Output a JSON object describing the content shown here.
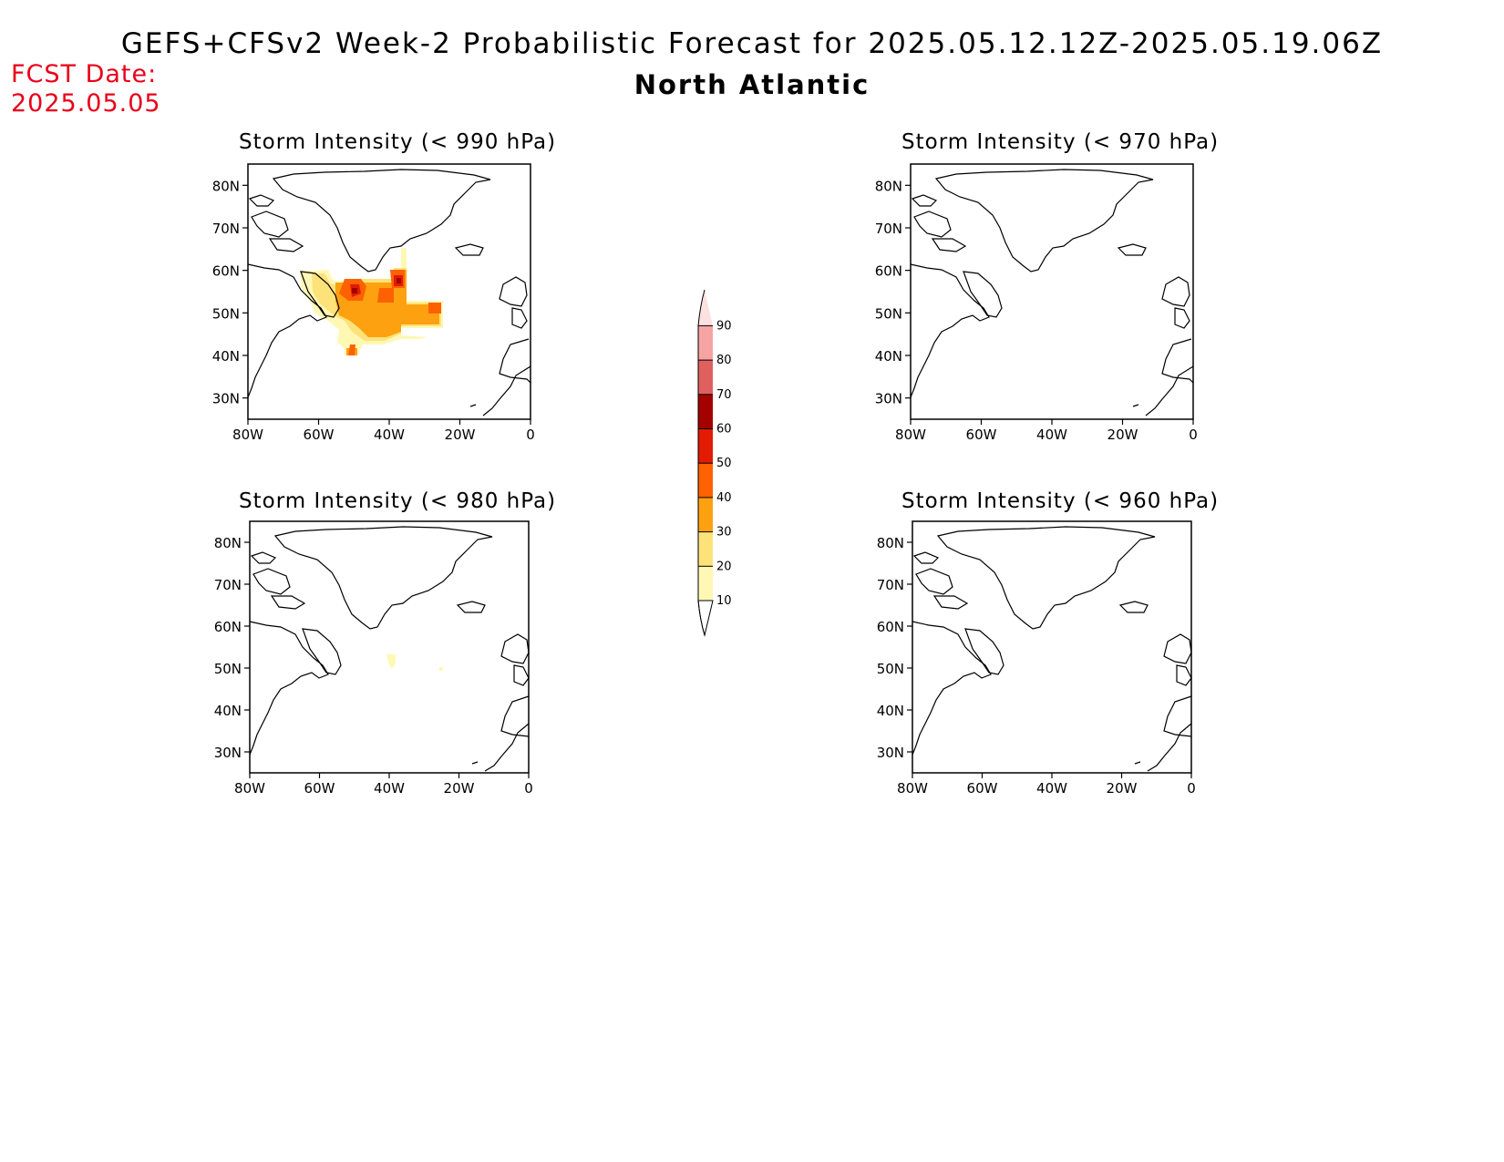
{
  "header": {
    "title": "GEFS+CFSv2 Week-2 Probabilistic Forecast for 2025.05.12.12Z-2025.05.19.06Z",
    "region": "North Atlantic",
    "fcst_label": "FCST Date:",
    "fcst_date": "2025.05.05"
  },
  "panels": [
    {
      "id": "p990",
      "title": "Storm Intensity (< 990 hPa)"
    },
    {
      "id": "p970",
      "title": "Storm Intensity (< 970 hPa)"
    },
    {
      "id": "p980",
      "title": "Storm Intensity (< 980 hPa)"
    },
    {
      "id": "p960",
      "title": "Storm Intensity (< 960 hPa)"
    }
  ],
  "axes": {
    "lat_labels": [
      "30N",
      "40N",
      "50N",
      "60N",
      "70N",
      "80N"
    ],
    "lon_labels": [
      "80W",
      "60W",
      "40W",
      "20W",
      "0"
    ]
  },
  "colorbar": {
    "labels": [
      "10",
      "20",
      "30",
      "40",
      "50",
      "60",
      "70",
      "80",
      "90"
    ],
    "colors": [
      "#fff8b4",
      "#fde27a",
      "#fda111",
      "#fd6101",
      "#e21b02",
      "#a30000",
      "#e06060",
      "#f5a3a3",
      "#fde1e1"
    ]
  }
}
